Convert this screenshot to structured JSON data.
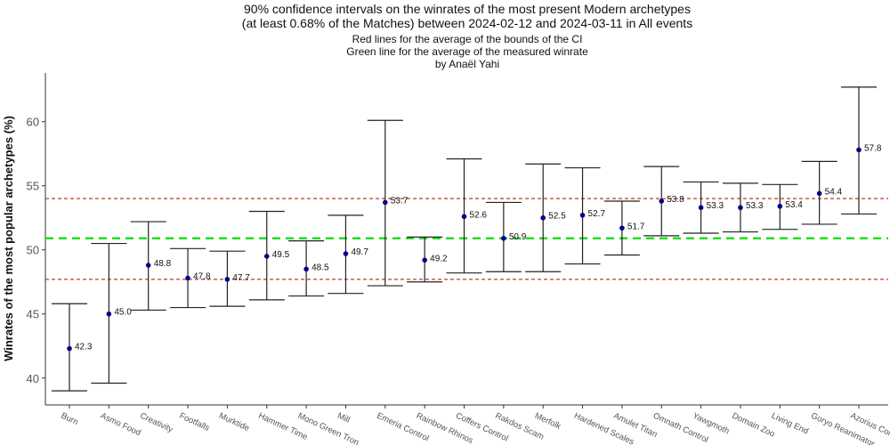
{
  "chart_data": {
    "type": "errorbar",
    "title_lines": [
      "90% confidence intervals on the winrates of the most present Modern archetypes",
      "(at least 0.68% of the Matches) between 2024-02-12 and 2024-03-11 in All events"
    ],
    "subtitle_lines": [
      "Red lines for the average of the bounds of the CI",
      "Green line for the average of the measured winrate",
      "by Anaël Yahi"
    ],
    "xlabel": "",
    "ylabel": "Winrates of the most popular archetypes (%)",
    "ylim": [
      37.9,
      63.8
    ],
    "yticks": [
      40,
      45,
      50,
      55,
      60
    ],
    "grid": false,
    "categories": [
      "Burn",
      "Asmo Food",
      "Creativity",
      "Footfalls",
      "Murktide",
      "Hammer Time",
      "Mono Green Tron",
      "Mill",
      "Emeria Control",
      "Rainbow Rhinos",
      "Coffers Control",
      "Rakdos Scam",
      "Merfolk",
      "Hardened Scales",
      "Amulet Titan",
      "Omnath Control",
      "Yawgmoth",
      "Domain Zoo",
      "Living End",
      "Goryo Reanimator",
      "Azorius Control"
    ],
    "winrate": [
      42.3,
      45.0,
      48.8,
      47.8,
      47.7,
      49.5,
      48.5,
      49.7,
      53.7,
      49.2,
      52.6,
      50.9,
      52.5,
      52.7,
      51.7,
      53.8,
      53.3,
      53.3,
      53.4,
      54.4,
      57.8
    ],
    "labels": [
      "42.3",
      "45.0",
      "48.8",
      "47.8",
      "47.7",
      "49.5",
      "48.5",
      "49.7",
      "53.7",
      "49.2",
      "52.6",
      "50.9",
      "52.5",
      "52.7",
      "51.7",
      "53.8",
      "53.3",
      "53.3",
      "53.4",
      "54.4",
      "57.8"
    ],
    "ci_upper": [
      45.8,
      50.5,
      52.2,
      50.1,
      49.9,
      53.0,
      50.7,
      52.7,
      60.1,
      51.0,
      57.1,
      53.7,
      56.7,
      56.4,
      53.8,
      56.5,
      55.3,
      55.2,
      55.1,
      56.9,
      62.7
    ],
    "ci_lower": [
      39.0,
      39.6,
      45.3,
      45.5,
      45.6,
      46.1,
      46.4,
      46.6,
      47.2,
      47.5,
      48.2,
      48.3,
      48.3,
      48.9,
      49.6,
      51.1,
      51.3,
      51.4,
      51.6,
      52.0,
      52.8
    ],
    "reference_lines": {
      "red_upper": 54.0,
      "red_lower": 47.7,
      "green_mean": 50.9
    },
    "colors": {
      "point": "#00008b",
      "errorbar": "#222222",
      "red_line": "#c0392b",
      "green_line": "#22dd22"
    }
  }
}
